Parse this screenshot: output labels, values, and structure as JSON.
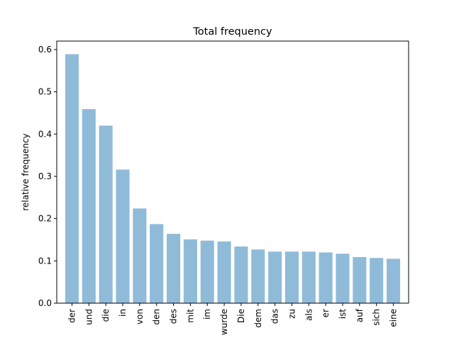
{
  "chart_data": {
    "type": "bar",
    "title": "Total frequency",
    "xlabel": "",
    "ylabel": "relative frequency",
    "categories": [
      "der",
      "und",
      "die",
      "in",
      "von",
      "den",
      "des",
      "mit",
      "im",
      "wurde",
      "Die",
      "dem",
      "das",
      "zu",
      "als",
      "er",
      "ist",
      "auf",
      "sich",
      "eine"
    ],
    "values": [
      0.589,
      0.459,
      0.42,
      0.316,
      0.224,
      0.187,
      0.164,
      0.151,
      0.148,
      0.146,
      0.134,
      0.127,
      0.122,
      0.122,
      0.122,
      0.12,
      0.117,
      0.109,
      0.107,
      0.105
    ],
    "ylim": [
      0,
      0.62
    ],
    "yticks": [
      "0.0",
      "0.1",
      "0.2",
      "0.3",
      "0.4",
      "0.5",
      "0.6"
    ],
    "bar_color": "#1f77b4",
    "grid": false,
    "legend": "none"
  }
}
